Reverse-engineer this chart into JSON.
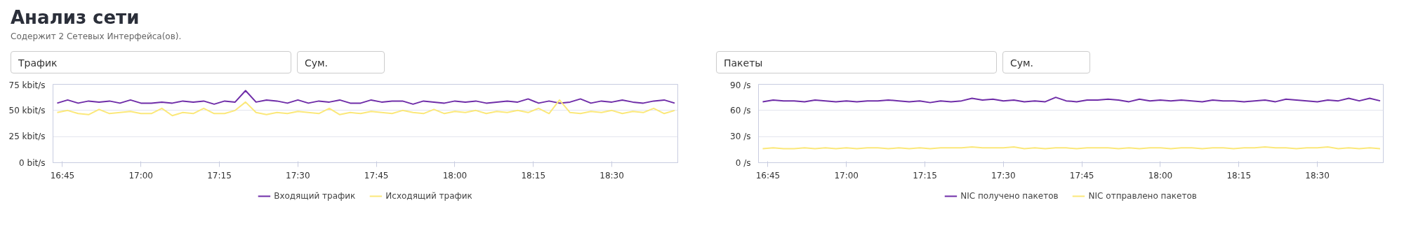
{
  "chart_data": [
    {
      "type": "line",
      "title": "Анализ сети",
      "subtitle": "Содержит 2 Сетевых Интерфейса(ов).",
      "annotations": [
        "Трафик",
        "Сум."
      ],
      "x": [
        16.7333,
        16.7667,
        16.8,
        16.8333,
        16.8667,
        16.9,
        16.9333,
        16.9667,
        17,
        17.0333,
        17.0667,
        17.1,
        17.1333,
        17.1667,
        17.2,
        17.2333,
        17.2667,
        17.3,
        17.3333,
        17.3667,
        17.4,
        17.4333,
        17.4667,
        17.5,
        17.5333,
        17.5667,
        17.6,
        17.6333,
        17.6667,
        17.7,
        17.7333,
        17.7667,
        17.8,
        17.8333,
        17.8667,
        17.9,
        17.9333,
        17.9667,
        18,
        18.0333,
        18.0667,
        18.1,
        18.1333,
        18.1667,
        18.2,
        18.2333,
        18.2667,
        18.3,
        18.3333,
        18.3667,
        18.4,
        18.4333,
        18.4667,
        18.5,
        18.5333,
        18.5667,
        18.6,
        18.6333,
        18.6667,
        18.7
      ],
      "xlim": [
        16.72,
        18.71
      ],
      "xticks": [
        {
          "value": 16.75,
          "label": "16:45"
        },
        {
          "value": 17,
          "label": "17:00"
        },
        {
          "value": 17.25,
          "label": "17:15"
        },
        {
          "value": 17.5,
          "label": "17:30"
        },
        {
          "value": 17.75,
          "label": "17:45"
        },
        {
          "value": 18,
          "label": "18:00"
        },
        {
          "value": 18.25,
          "label": "18:15"
        },
        {
          "value": 18.5,
          "label": "18:30"
        }
      ],
      "ylim": [
        0,
        75
      ],
      "yticks": [
        {
          "value": 0,
          "label": "0 bit/s"
        },
        {
          "value": 25,
          "label": "25 kbit/s"
        },
        {
          "value": 50,
          "label": "50 kbit/s"
        },
        {
          "value": 75,
          "label": "75 kbit/s"
        }
      ],
      "grid": "y",
      "legend": "bottom",
      "series": [
        {
          "name": "Входящий трафик",
          "color": "#6f2da8",
          "values": [
            57,
            60,
            57,
            59,
            58,
            59,
            57,
            60,
            57,
            57,
            58,
            57,
            59,
            58,
            59,
            56,
            59,
            58,
            69,
            58,
            60,
            59,
            57,
            60,
            57,
            59,
            58,
            60,
            57,
            57,
            60,
            58,
            59,
            59,
            56,
            59,
            58,
            57,
            59,
            58,
            59,
            57,
            58,
            59,
            58,
            61,
            57,
            59,
            57,
            58,
            61,
            57,
            59,
            58,
            60,
            58,
            57,
            59,
            60,
            57
          ]
        },
        {
          "name": "Исходящий трафик",
          "color": "#fbe87a",
          "values": [
            48,
            50,
            47,
            46,
            51,
            47,
            48,
            49,
            47,
            47,
            52,
            45,
            48,
            47,
            52,
            47,
            47,
            50,
            58,
            48,
            46,
            48,
            47,
            49,
            48,
            47,
            52,
            46,
            48,
            47,
            49,
            48,
            47,
            50,
            48,
            47,
            51,
            47,
            49,
            48,
            50,
            47,
            49,
            48,
            50,
            48,
            52,
            47,
            60,
            48,
            47,
            49,
            48,
            50,
            47,
            49,
            48,
            52,
            47,
            50
          ]
        }
      ]
    },
    {
      "type": "line",
      "annotations": [
        "Пакеты",
        "Сум."
      ],
      "x": [
        16.7333,
        16.7667,
        16.8,
        16.8333,
        16.8667,
        16.9,
        16.9333,
        16.9667,
        17,
        17.0333,
        17.0667,
        17.1,
        17.1333,
        17.1667,
        17.2,
        17.2333,
        17.2667,
        17.3,
        17.3333,
        17.3667,
        17.4,
        17.4333,
        17.4667,
        17.5,
        17.5333,
        17.5667,
        17.6,
        17.6333,
        17.6667,
        17.7,
        17.7333,
        17.7667,
        17.8,
        17.8333,
        17.8667,
        17.9,
        17.9333,
        17.9667,
        18,
        18.0333,
        18.0667,
        18.1,
        18.1333,
        18.1667,
        18.2,
        18.2333,
        18.2667,
        18.3,
        18.3333,
        18.3667,
        18.4,
        18.4333,
        18.4667,
        18.5,
        18.5333,
        18.5667,
        18.6,
        18.6333,
        18.6667,
        18.7
      ],
      "xlim": [
        16.72,
        18.71
      ],
      "xticks": [
        {
          "value": 16.75,
          "label": "16:45"
        },
        {
          "value": 17,
          "label": "17:00"
        },
        {
          "value": 17.25,
          "label": "17:15"
        },
        {
          "value": 17.5,
          "label": "17:30"
        },
        {
          "value": 17.75,
          "label": "17:45"
        },
        {
          "value": 18,
          "label": "18:00"
        },
        {
          "value": 18.25,
          "label": "18:15"
        },
        {
          "value": 18.5,
          "label": "18:30"
        }
      ],
      "ylim": [
        0,
        90
      ],
      "yticks": [
        {
          "value": 0,
          "label": "0 /s"
        },
        {
          "value": 30,
          "label": "30 /s"
        },
        {
          "value": 60,
          "label": "60 /s"
        },
        {
          "value": 90,
          "label": "90 /s"
        }
      ],
      "grid": "y",
      "legend": "bottom",
      "series": [
        {
          "name": "NIC получено пакетов",
          "color": "#6f2da8",
          "values": [
            70,
            72,
            71,
            71,
            70,
            72,
            71,
            70,
            71,
            70,
            71,
            71,
            72,
            71,
            70,
            71,
            69,
            71,
            70,
            71,
            74,
            72,
            73,
            71,
            72,
            70,
            71,
            70,
            75,
            71,
            70,
            72,
            72,
            73,
            72,
            70,
            73,
            71,
            72,
            71,
            72,
            71,
            70,
            72,
            71,
            71,
            70,
            71,
            72,
            70,
            73,
            72,
            71,
            70,
            72,
            71,
            74,
            71,
            74,
            71
          ]
        },
        {
          "name": "NIC отправлено пакетов",
          "color": "#fbe87a",
          "values": [
            16,
            17,
            16,
            16,
            17,
            16,
            17,
            16,
            17,
            16,
            17,
            17,
            16,
            17,
            16,
            17,
            16,
            17,
            17,
            17,
            18,
            17,
            17,
            17,
            18,
            16,
            17,
            16,
            17,
            17,
            16,
            17,
            17,
            17,
            16,
            17,
            16,
            17,
            17,
            16,
            17,
            17,
            16,
            17,
            17,
            16,
            17,
            17,
            18,
            17,
            17,
            16,
            17,
            17,
            18,
            16,
            17,
            16,
            17,
            16
          ]
        }
      ]
    }
  ]
}
